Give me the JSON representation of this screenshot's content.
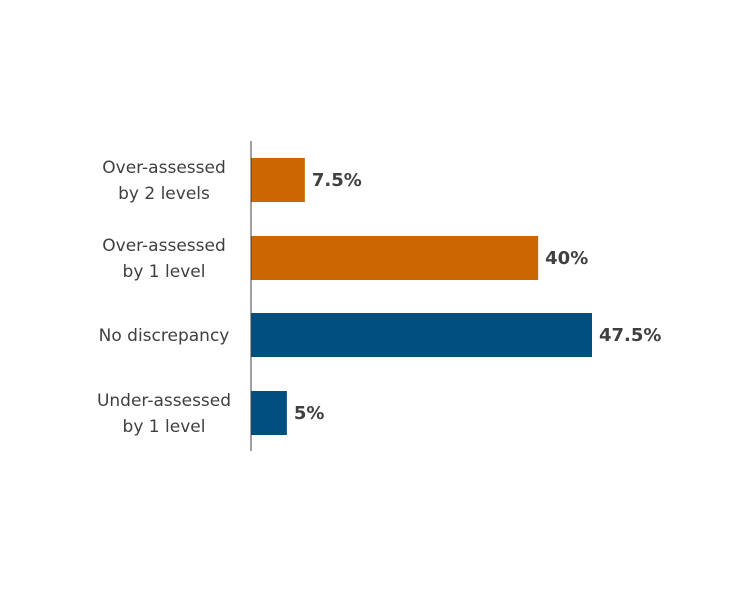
{
  "chart_data": {
    "type": "bar",
    "orientation": "horizontal",
    "categories": [
      "Over-assessed by 2 levels",
      "Over-assessed by 1 level",
      "No discrepancy",
      "Under-assessed by 1 level"
    ],
    "category_label_lines": [
      [
        "Over-assessed",
        "by 2 levels"
      ],
      [
        "Over-assessed",
        "by 1 level"
      ],
      [
        "No discrepancy"
      ],
      [
        "Under-assessed",
        "by 1 level"
      ]
    ],
    "values": [
      7.5,
      40,
      47.5,
      5
    ],
    "data_labels": [
      "7.5%",
      "40%",
      "47.5%",
      "5%"
    ],
    "bar_colors": [
      "#CC6600",
      "#CC6600",
      "#00507F",
      "#00507F"
    ],
    "xlim": [
      0,
      50
    ],
    "title": "",
    "xlabel": "",
    "ylabel": "",
    "grid": false,
    "legend": "none"
  }
}
